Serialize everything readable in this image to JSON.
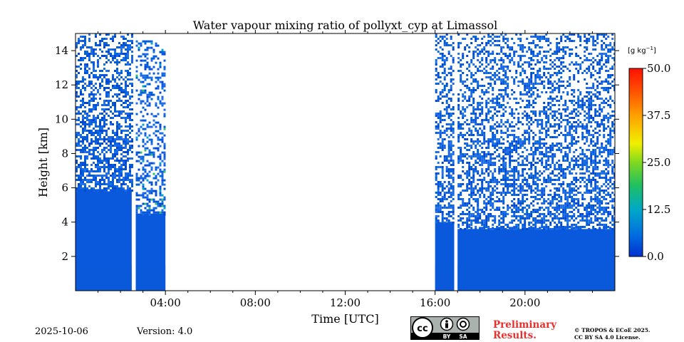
{
  "chart_data": {
    "type": "heatmap",
    "title": "Water vapour mixing ratio of pollyxt_cyp at Limassol",
    "xlabel": "Time [UTC]",
    "ylabel": "Height [km]",
    "xlim_hours": [
      0,
      24
    ],
    "ylim_km": [
      0,
      15
    ],
    "x_ticks": [
      {
        "hour": 4,
        "label": "04:00"
      },
      {
        "hour": 8,
        "label": "08:00"
      },
      {
        "hour": 12,
        "label": "12:00"
      },
      {
        "hour": 16,
        "label": "16:00"
      },
      {
        "hour": 20,
        "label": "20:00"
      }
    ],
    "y_ticks": [
      {
        "km": 2,
        "label": "2"
      },
      {
        "km": 4,
        "label": "4"
      },
      {
        "km": 6,
        "label": "6"
      },
      {
        "km": 8,
        "label": "8"
      },
      {
        "km": 10,
        "label": "10"
      },
      {
        "km": 12,
        "label": "12"
      },
      {
        "km": 14,
        "label": "14"
      }
    ],
    "colorbar": {
      "unit_prefix": "[g kg",
      "unit_exp": "−1",
      "unit_suffix": "]",
      "min": 0.0,
      "max": 50.0,
      "ticks": [
        "0.0",
        "12.5",
        "25.0",
        "37.5",
        "50.0"
      ],
      "tick_values": [
        0,
        12.5,
        25,
        37.5,
        50
      ]
    },
    "data_segments": [
      {
        "start_hour": 0.0,
        "end_hour": 2.5,
        "dense_top_km": 5.8,
        "noisy_top_km": 15,
        "noise_density": 0.55
      },
      {
        "start_hour": 2.68,
        "end_hour": 4.0,
        "dense_top_km": 4.5,
        "noisy_top_km": 14.6,
        "noise_density": 0.35
      },
      {
        "start_hour": 16.0,
        "end_hour": 16.85,
        "dense_top_km": 4.0,
        "noisy_top_km": 15,
        "noise_density": 0.5
      },
      {
        "start_hour": 17.0,
        "end_hour": 24.0,
        "dense_top_km": 3.6,
        "noisy_top_km": 15,
        "noise_density": 0.45
      }
    ],
    "no_data_ranges_hours": [
      [
        2.5,
        2.68
      ],
      [
        4.0,
        16.0
      ],
      [
        16.85,
        17.0
      ]
    ]
  },
  "footer": {
    "date": "2025-10-06",
    "version": "Version: 4.0",
    "preliminary_line1": "Preliminary",
    "preliminary_line2": "Results.",
    "copyright_line1": "© TROPOS & ECoE 2025.",
    "copyright_line2": "CC BY SA 4.0 License.",
    "cc_badge_text": {
      "cc": "cc",
      "by": "BY",
      "sa": "SA"
    }
  },
  "colors": {
    "deep_blue": "#0050d8",
    "mid_blue": "#1565e0",
    "cyan": "#00a8d8",
    "green": "#40c040",
    "badge_grey": "#aab2ad"
  }
}
